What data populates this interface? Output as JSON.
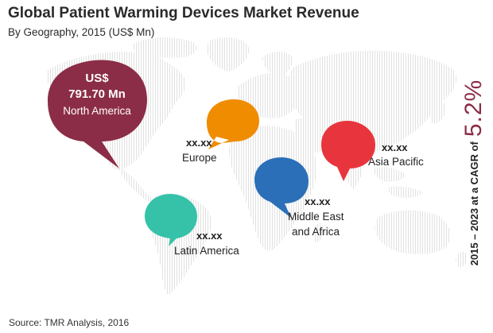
{
  "title": "Global Patient Warming Devices Market Revenue",
  "subtitle": "By Geography, 2015 (US$ Mn)",
  "source": "Source: TMR Analysis, 2016",
  "cagr": {
    "prefix": "2015 – 2023 at a CAGR of",
    "value": "5.2%"
  },
  "colors": {
    "north_america": "#8b2d46",
    "europe": "#f08c00",
    "asia_pacific": "#e8353d",
    "middle_east_africa": "#2a6fb7",
    "latin_america": "#35c2a8",
    "accent": "#8b2d46"
  },
  "chart_data": {
    "type": "map",
    "title": "Global Patient Warming Devices Market Revenue",
    "subtitle": "By Geography, 2015 (US$ Mn)",
    "regions": [
      {
        "name": "North America",
        "currency": "US$",
        "value": "791.70 Mn"
      },
      {
        "name": "Europe",
        "value": "xx.xx"
      },
      {
        "name": "Asia Pacific",
        "value": "xx.xx"
      },
      {
        "name": "Middle East and Africa",
        "name_lines": [
          "Middle East",
          "and Africa"
        ],
        "value": "xx.xx"
      },
      {
        "name": "Latin America",
        "value": "xx.xx"
      }
    ],
    "cagr_period": "2015 – 2023",
    "cagr": "5.2%"
  }
}
